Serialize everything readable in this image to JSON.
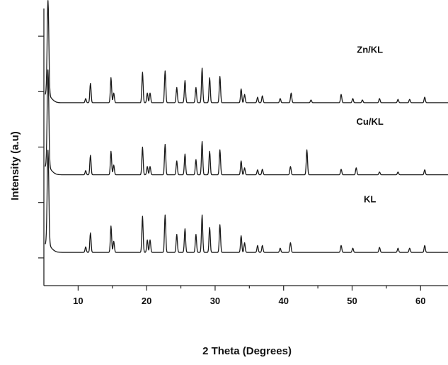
{
  "chart_data": {
    "type": "line",
    "title": "",
    "xlabel": "2 Theta (Degrees)",
    "ylabel": "Intensity (a.u)",
    "xlim": [
      5,
      64
    ],
    "x_ticks": [
      10,
      20,
      30,
      40,
      50,
      60
    ],
    "y_ticks_labeled": false,
    "grid": false,
    "legend": "inline labels above each trace",
    "line_color": "#1a1a1a",
    "series": [
      {
        "name": "Zn/KL",
        "baseline": 0.66,
        "peaks": [
          [
            5.6,
            0.34
          ],
          [
            11.1,
            0.015
          ],
          [
            11.8,
            0.07
          ],
          [
            14.8,
            0.09
          ],
          [
            15.2,
            0.035
          ],
          [
            19.4,
            0.11
          ],
          [
            20.1,
            0.035
          ],
          [
            20.5,
            0.035
          ],
          [
            22.7,
            0.115
          ],
          [
            24.4,
            0.055
          ],
          [
            25.6,
            0.08
          ],
          [
            27.2,
            0.055
          ],
          [
            28.1,
            0.125
          ],
          [
            29.2,
            0.09
          ],
          [
            30.7,
            0.095
          ],
          [
            33.8,
            0.05
          ],
          [
            34.3,
            0.03
          ],
          [
            36.2,
            0.02
          ],
          [
            36.9,
            0.025
          ],
          [
            39.5,
            0.015
          ],
          [
            41.1,
            0.035
          ],
          [
            44.0,
            0.01
          ],
          [
            48.4,
            0.03
          ],
          [
            50.1,
            0.015
          ],
          [
            51.5,
            0.01
          ],
          [
            54.0,
            0.015
          ],
          [
            56.7,
            0.012
          ],
          [
            58.4,
            0.012
          ],
          [
            60.6,
            0.02
          ]
        ]
      },
      {
        "name": "Cu/KL",
        "baseline": 0.4,
        "peaks": [
          [
            5.6,
            0.35
          ],
          [
            11.1,
            0.015
          ],
          [
            11.8,
            0.07
          ],
          [
            14.8,
            0.085
          ],
          [
            15.2,
            0.035
          ],
          [
            19.4,
            0.1
          ],
          [
            20.1,
            0.03
          ],
          [
            20.5,
            0.03
          ],
          [
            22.7,
            0.11
          ],
          [
            24.4,
            0.05
          ],
          [
            25.6,
            0.075
          ],
          [
            27.2,
            0.055
          ],
          [
            28.1,
            0.12
          ],
          [
            29.2,
            0.085
          ],
          [
            30.7,
            0.09
          ],
          [
            33.8,
            0.05
          ],
          [
            34.3,
            0.025
          ],
          [
            36.2,
            0.018
          ],
          [
            36.9,
            0.02
          ],
          [
            41.0,
            0.03
          ],
          [
            43.4,
            0.09
          ],
          [
            48.4,
            0.02
          ],
          [
            50.6,
            0.025
          ],
          [
            54.0,
            0.01
          ],
          [
            56.7,
            0.01
          ],
          [
            60.6,
            0.018
          ]
        ]
      },
      {
        "name": "KL",
        "baseline": 0.12,
        "peaks": [
          [
            5.6,
            0.34
          ],
          [
            11.1,
            0.02
          ],
          [
            11.8,
            0.07
          ],
          [
            14.8,
            0.095
          ],
          [
            15.2,
            0.04
          ],
          [
            19.4,
            0.13
          ],
          [
            20.1,
            0.045
          ],
          [
            20.5,
            0.045
          ],
          [
            22.7,
            0.135
          ],
          [
            24.4,
            0.065
          ],
          [
            25.6,
            0.085
          ],
          [
            27.2,
            0.065
          ],
          [
            28.1,
            0.135
          ],
          [
            29.2,
            0.09
          ],
          [
            30.7,
            0.1
          ],
          [
            33.8,
            0.06
          ],
          [
            34.3,
            0.035
          ],
          [
            36.2,
            0.025
          ],
          [
            36.9,
            0.025
          ],
          [
            39.5,
            0.015
          ],
          [
            41.0,
            0.035
          ],
          [
            48.4,
            0.025
          ],
          [
            50.1,
            0.015
          ],
          [
            54.0,
            0.018
          ],
          [
            56.7,
            0.015
          ],
          [
            58.4,
            0.015
          ],
          [
            60.6,
            0.025
          ]
        ]
      }
    ]
  }
}
